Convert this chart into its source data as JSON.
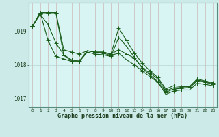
{
  "xlabel": "Graphe pression niveau de la mer (hPa)",
  "hours": [
    0,
    1,
    2,
    3,
    4,
    5,
    6,
    7,
    8,
    9,
    10,
    11,
    12,
    13,
    14,
    15,
    16,
    17,
    18,
    19,
    20,
    21,
    22,
    23
  ],
  "line_trend1": [
    1019.15,
    1019.5,
    1019.2,
    1018.65,
    1018.3,
    1018.15,
    1018.1,
    1018.38,
    1018.32,
    1018.3,
    1018.25,
    1018.82,
    1018.55,
    1018.22,
    1017.9,
    1017.7,
    1017.5,
    1017.18,
    1017.28,
    1017.3,
    1017.32,
    1017.52,
    1017.48,
    1017.43
  ],
  "line_obs_wavy": [
    1019.15,
    1019.55,
    1018.72,
    1018.25,
    1018.18,
    1018.1,
    1018.1,
    1018.42,
    1018.38,
    1018.38,
    1018.32,
    1019.1,
    1018.72,
    1018.35,
    1018.05,
    1017.82,
    1017.62,
    1017.28,
    1017.38,
    1017.35,
    1017.35,
    1017.58,
    1017.52,
    1017.47
  ],
  "line_straight1": [
    1019.15,
    1019.55,
    1019.55,
    1019.55,
    1018.45,
    1018.38,
    1018.32,
    1018.42,
    1018.38,
    1018.38,
    1018.32,
    1018.45,
    1018.32,
    1018.2,
    1017.92,
    1017.75,
    1017.58,
    1017.22,
    1017.32,
    1017.32,
    1017.32,
    1017.55,
    1017.5,
    1017.45
  ],
  "line_straight2": [
    1019.15,
    1019.55,
    1019.55,
    1019.55,
    1018.28,
    1018.12,
    1018.12,
    1018.42,
    1018.38,
    1018.35,
    1018.28,
    1018.35,
    1018.15,
    1018.0,
    1017.82,
    1017.65,
    1017.48,
    1017.12,
    1017.22,
    1017.25,
    1017.25,
    1017.45,
    1017.42,
    1017.38
  ],
  "bg_color": "#cceae8",
  "plot_bg_color": "#d8f5f3",
  "line_color": "#1a5c1a",
  "grid_color": "#b0cece",
  "ylim": [
    1016.75,
    1019.85
  ],
  "yticks": [
    1017,
    1018,
    1019
  ],
  "figsize": [
    3.2,
    2.0
  ],
  "dpi": 100
}
